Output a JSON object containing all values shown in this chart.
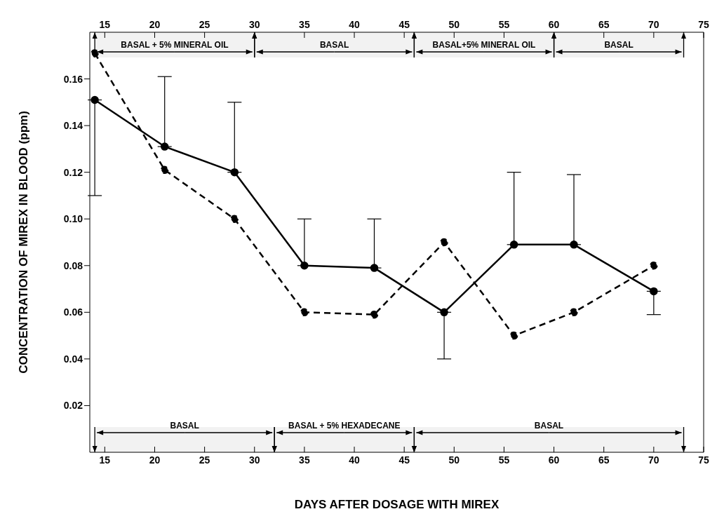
{
  "chart_data": {
    "type": "line",
    "xlabel": "DAYS AFTER DOSAGE WITH MIREX",
    "ylabel": "CONCENTRATION OF MIREX IN BLOOD (ppm)",
    "x": [
      14,
      21,
      28,
      35,
      42,
      49,
      56,
      62,
      70
    ],
    "series": [
      {
        "color": "#000000",
        "line_style": "solid",
        "values": [
          0.151,
          0.131,
          0.12,
          0.08,
          0.079,
          0.06,
          0.089,
          0.089,
          0.069
        ],
        "errors": [
          [
            0.11,
            0.151
          ],
          [
            0.131,
            0.161
          ],
          [
            0.12,
            0.15
          ],
          [
            0.08,
            0.1
          ],
          [
            0.079,
            0.1
          ],
          [
            0.04,
            0.06
          ],
          [
            0.089,
            0.12
          ],
          [
            0.089,
            0.119
          ],
          [
            0.059,
            0.069
          ]
        ]
      },
      {
        "color": "#000000",
        "line_style": "dashed",
        "values": [
          0.171,
          0.121,
          0.1,
          0.06,
          0.059,
          0.09,
          0.05,
          0.06,
          0.08
        ]
      }
    ],
    "xlim": [
      13.5,
      75
    ],
    "xticks": [
      15,
      20,
      25,
      30,
      35,
      40,
      45,
      50,
      55,
      60,
      65,
      70,
      75
    ],
    "x2lim": [
      13.5,
      75
    ],
    "x2ticks": [
      15,
      20,
      25,
      30,
      35,
      40,
      45,
      50,
      55,
      60,
      65,
      70,
      75
    ],
    "ylim": [
      0,
      0.18
    ],
    "yticks": [
      0.02,
      0.04,
      0.06,
      0.08,
      {
        "value": 0.1,
        "label": "0.10"
      },
      0.12,
      0.14,
      0.16
    ],
    "bands": [
      {
        "axis": "x2",
        "from": 14,
        "to": 30,
        "label": "BASAL + 5% MINERAL OIL"
      },
      {
        "axis": "x2",
        "from": 30,
        "to": 46,
        "label": "BASAL"
      },
      {
        "axis": "x2",
        "from": 46,
        "to": 60,
        "label": "BASAL+5% MINERAL OIL"
      },
      {
        "axis": "x2",
        "from": 60,
        "to": 73,
        "label": "BASAL"
      },
      {
        "axis": "x",
        "from": 14,
        "to": 32,
        "label": "BASAL"
      },
      {
        "axis": "x",
        "from": 32,
        "to": 46,
        "label": "BASAL + 5% HEXADECANE"
      },
      {
        "axis": "x",
        "from": 46,
        "to": 73,
        "label": "BASAL"
      }
    ],
    "marker": "circle",
    "grid": false,
    "legend": false
  }
}
